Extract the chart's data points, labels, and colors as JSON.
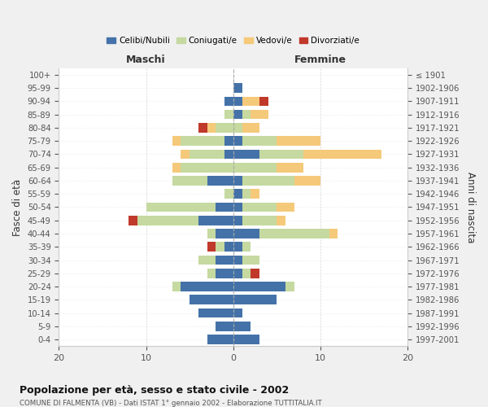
{
  "age_groups": [
    "100+",
    "95-99",
    "90-94",
    "85-89",
    "80-84",
    "75-79",
    "70-74",
    "65-69",
    "60-64",
    "55-59",
    "50-54",
    "45-49",
    "40-44",
    "35-39",
    "30-34",
    "25-29",
    "20-24",
    "15-19",
    "10-14",
    "5-9",
    "0-4"
  ],
  "birth_years": [
    "≤ 1901",
    "1902-1906",
    "1907-1911",
    "1912-1916",
    "1917-1921",
    "1922-1926",
    "1927-1931",
    "1932-1936",
    "1937-1941",
    "1942-1946",
    "1947-1951",
    "1952-1956",
    "1957-1961",
    "1962-1966",
    "1967-1971",
    "1972-1976",
    "1977-1981",
    "1982-1986",
    "1987-1991",
    "1992-1996",
    "1997-2001"
  ],
  "maschi": {
    "celibi": [
      0,
      0,
      1,
      0,
      0,
      1,
      1,
      0,
      3,
      0,
      2,
      4,
      2,
      1,
      2,
      2,
      6,
      5,
      4,
      2,
      3
    ],
    "coniugati": [
      0,
      0,
      0,
      1,
      2,
      5,
      4,
      6,
      4,
      1,
      8,
      7,
      1,
      1,
      2,
      1,
      1,
      0,
      0,
      0,
      0
    ],
    "vedovi": [
      0,
      0,
      0,
      0,
      1,
      1,
      1,
      1,
      0,
      0,
      0,
      0,
      0,
      0,
      0,
      0,
      0,
      0,
      0,
      0,
      0
    ],
    "divorziati": [
      0,
      0,
      0,
      0,
      1,
      0,
      0,
      0,
      0,
      0,
      0,
      1,
      0,
      1,
      0,
      0,
      0,
      0,
      0,
      0,
      0
    ]
  },
  "femmine": {
    "nubili": [
      0,
      1,
      1,
      1,
      0,
      1,
      3,
      0,
      1,
      1,
      1,
      1,
      3,
      1,
      1,
      1,
      6,
      5,
      1,
      2,
      3
    ],
    "coniugate": [
      0,
      0,
      0,
      1,
      1,
      4,
      5,
      5,
      6,
      1,
      4,
      4,
      8,
      1,
      2,
      1,
      1,
      0,
      0,
      0,
      0
    ],
    "vedove": [
      0,
      0,
      2,
      2,
      2,
      5,
      9,
      3,
      3,
      1,
      2,
      1,
      1,
      0,
      0,
      0,
      0,
      0,
      0,
      0,
      0
    ],
    "divorziate": [
      0,
      0,
      1,
      0,
      0,
      0,
      0,
      0,
      0,
      0,
      0,
      0,
      0,
      0,
      0,
      1,
      0,
      0,
      0,
      0,
      0
    ]
  },
  "colors": {
    "celibi": "#4472a8",
    "coniugati": "#c5d9a0",
    "vedovi": "#f5c97a",
    "divorziati": "#c0392b"
  },
  "xlim": [
    -20,
    20
  ],
  "title": "Popolazione per età, sesso e stato civile - 2002",
  "subtitle": "COMUNE DI FALMENTA (VB) - Dati ISTAT 1° gennaio 2002 - Elaborazione TUTTITALIA.IT",
  "ylabel": "Fasce di età",
  "ylabel_right": "Anni di nascita",
  "xlabel_left": "Maschi",
  "xlabel_right": "Femmine",
  "legend_labels": [
    "Celibi/Nubili",
    "Coniugati/e",
    "Vedovi/e",
    "Divorziati/e"
  ],
  "xticks": [
    -20,
    -10,
    0,
    10,
    20
  ],
  "xticklabels": [
    "20",
    "10",
    "0",
    "10",
    "20"
  ],
  "bg_color": "#f0f0f0",
  "plot_bg": "#ffffff"
}
